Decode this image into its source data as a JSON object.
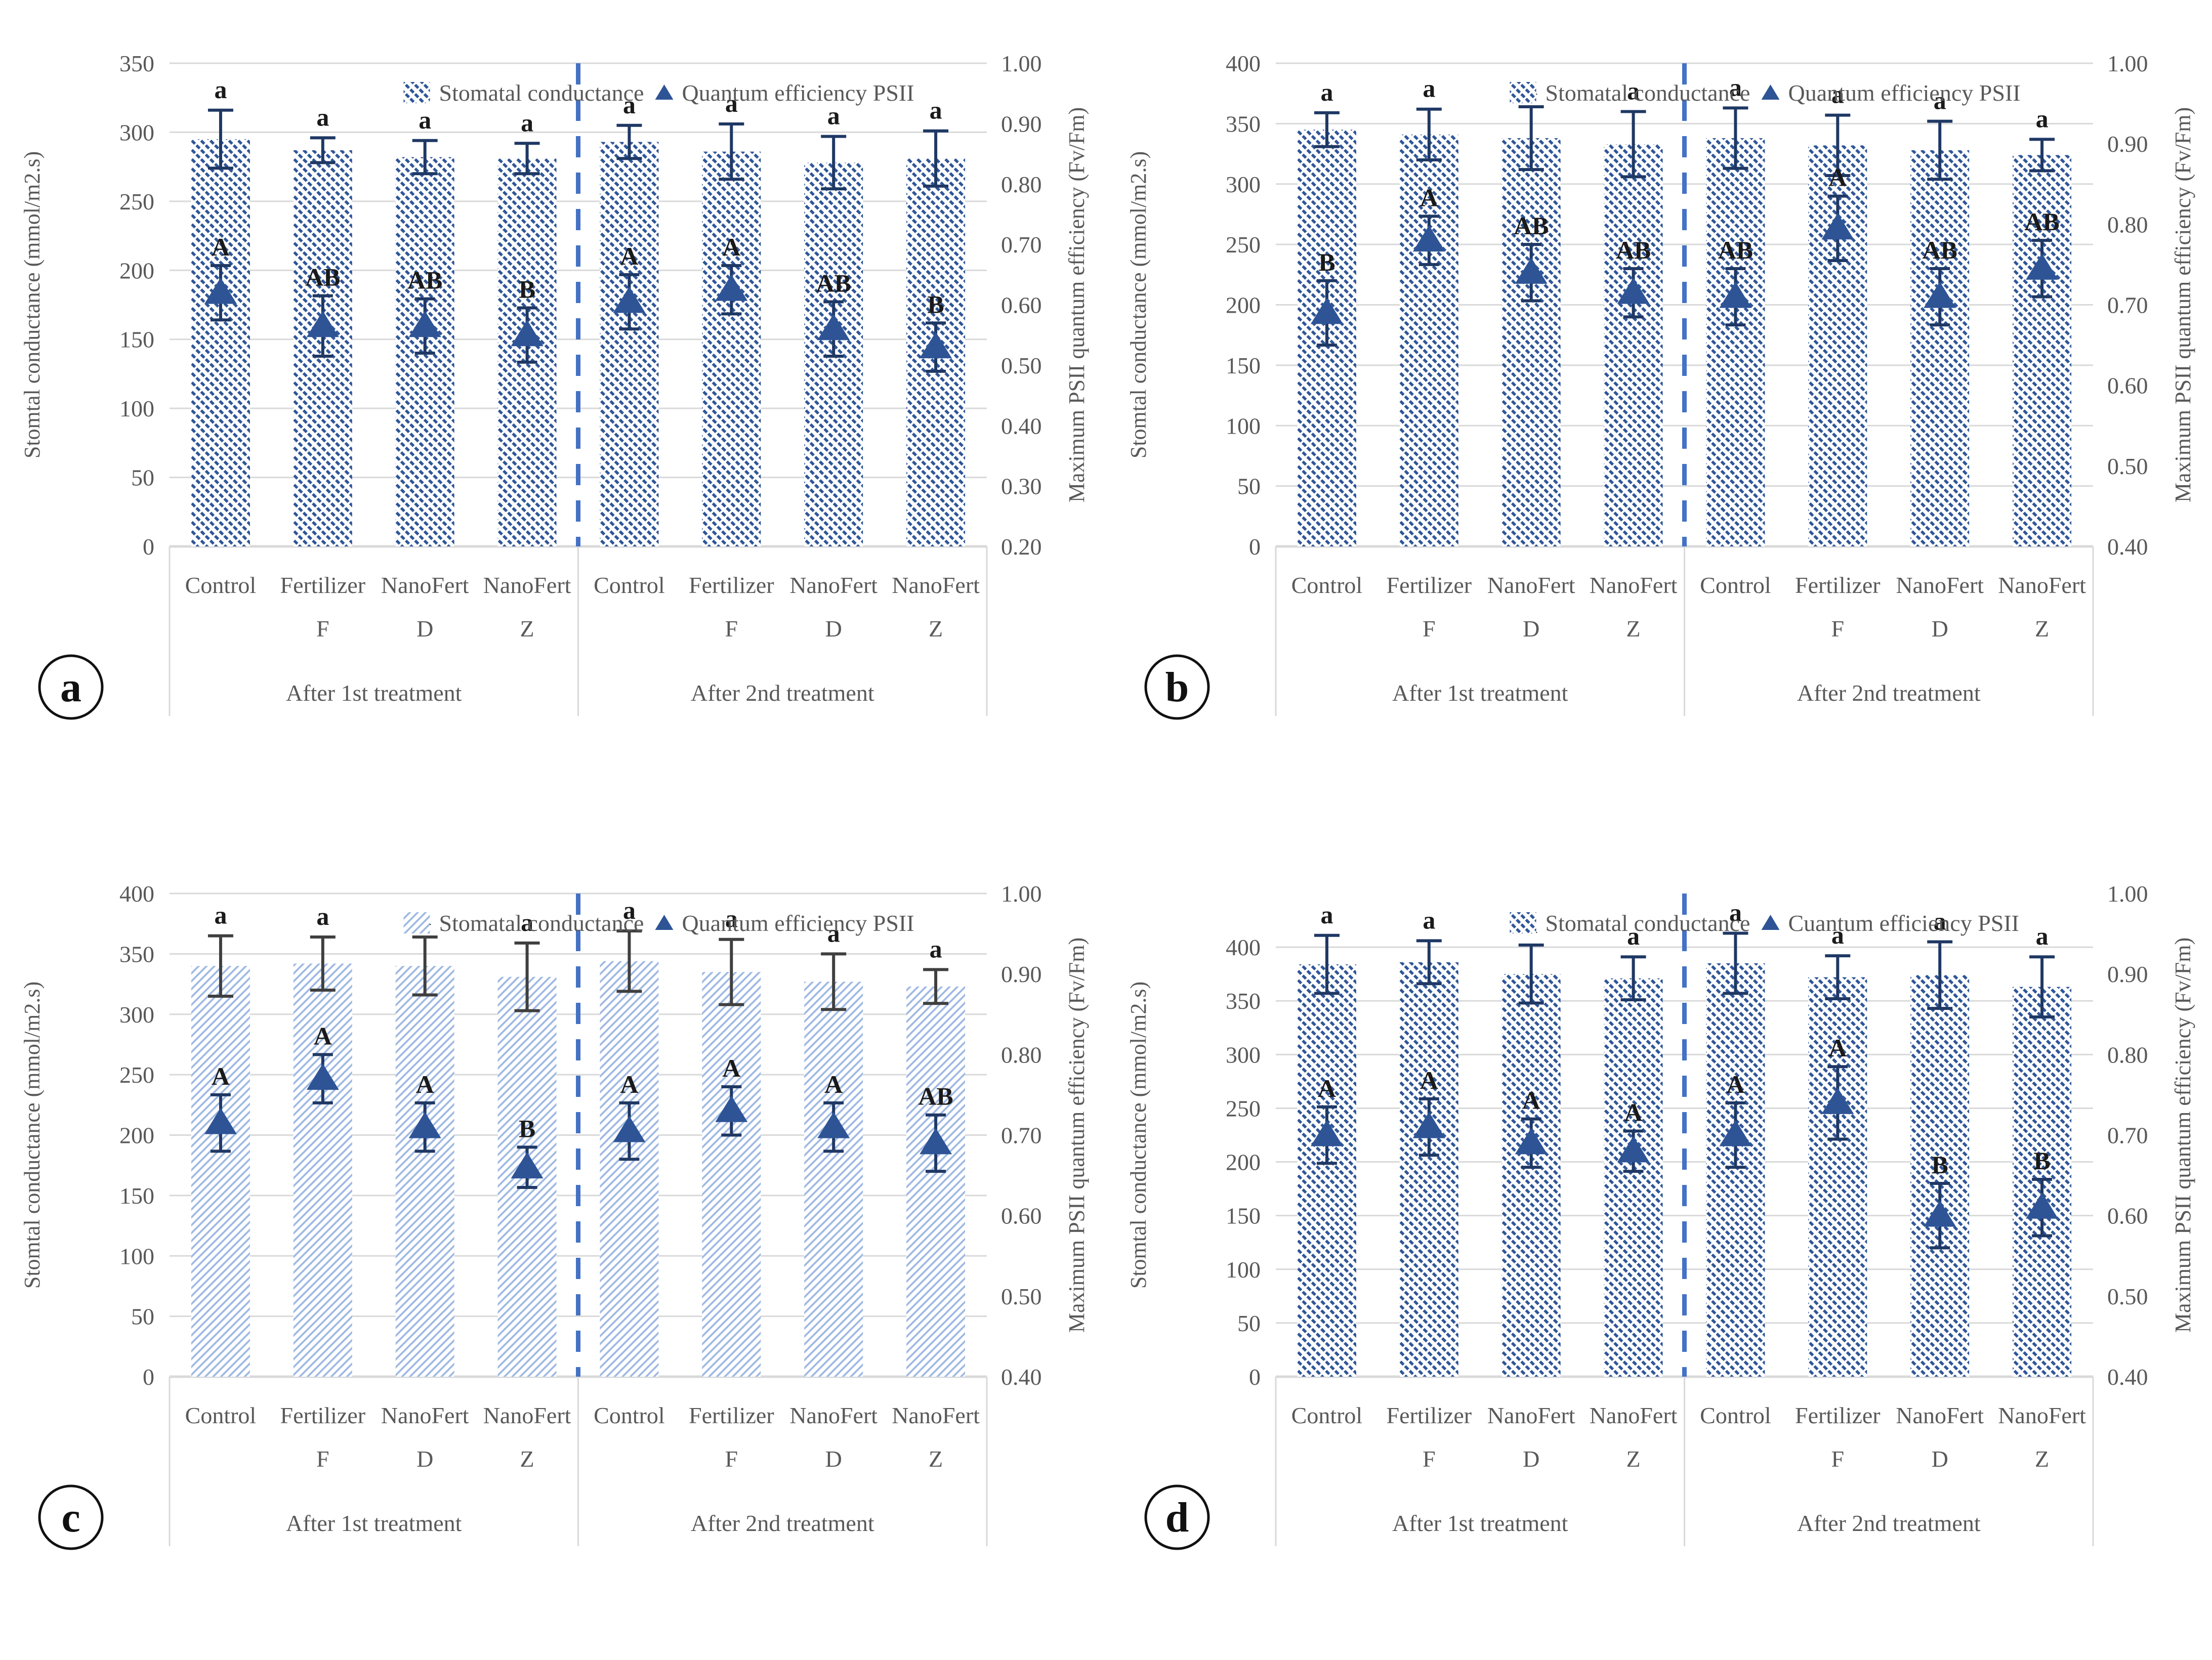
{
  "figure": {
    "panel_badges": [
      "a",
      "b",
      "c",
      "d"
    ]
  },
  "colors": {
    "hatch_dark": "#2e5597",
    "hatch_light": "#9db7e2",
    "triangle_fill": "#2e5496",
    "triangle_err": "#1f3864",
    "bar_err_navy": "#1f3864",
    "bar_err_gray": "#3f3f3f",
    "divider_blue": "#4472c4",
    "gridline": "#d9d9d9",
    "axis_text": "#595959",
    "sig_letter": "#1a1a1a",
    "badge_border": "#111111"
  },
  "panels": [
    {
      "badge": "a",
      "legend": [
        {
          "icon": "hatch-swatch",
          "label": "Stomatal conductance"
        },
        {
          "icon": "triangle-marker",
          "label": "Quantum efficiency PSII"
        }
      ]
    },
    {
      "badge": "b",
      "legend": [
        {
          "icon": "hatch-swatch",
          "label": "Stomatal conductance"
        },
        {
          "icon": "triangle-marker",
          "label": "Quantum efficiency PSII"
        }
      ]
    },
    {
      "badge": "c",
      "legend": [
        {
          "icon": "hatch-swatch",
          "label": "Stomatal conductance"
        },
        {
          "icon": "triangle-marker",
          "label": "Quantum efficiency PSII"
        }
      ]
    },
    {
      "badge": "d",
      "legend": [
        {
          "icon": "hatch-swatch",
          "label": "Stomatal conductance"
        },
        {
          "icon": "triangle-marker",
          "label": "Cuantum efficiency PSII"
        }
      ]
    }
  ],
  "chart_data": [
    {
      "type": "bar",
      "panel": "a",
      "subtype": "bars-with-scatter-triangles",
      "categories": [
        [
          "Control",
          ""
        ],
        [
          "Fertilizer",
          "F"
        ],
        [
          "NanoFert",
          "D"
        ],
        [
          "NanoFert",
          "Z"
        ],
        [
          "Control",
          ""
        ],
        [
          "Fertilizer",
          "F"
        ],
        [
          "NanoFert",
          "D"
        ],
        [
          "NanoFert",
          "Z"
        ]
      ],
      "group_labels": [
        "After 1st treatment",
        "After 2nd treatment"
      ],
      "left_axis": {
        "label": "Stomtal conductance (mmol/m2.s)",
        "range": [
          0,
          350
        ],
        "ticks": [
          350,
          300,
          250,
          200,
          150,
          100,
          50,
          0
        ]
      },
      "right_axis": {
        "label": "Maximum PSII quantum efficiency (Fv/Fm)",
        "range": [
          0.2,
          1.0
        ],
        "ticks": [
          "1.00",
          "0.90",
          "0.80",
          "0.70",
          "0.60",
          "0.50",
          "0.40",
          "0.30",
          "0.20"
        ]
      },
      "series": [
        {
          "name": "Stomatal conductance",
          "type": "bar",
          "axis": "left",
          "values": [
            295,
            287,
            282,
            281,
            293,
            286,
            278,
            281
          ],
          "errors": [
            21,
            9,
            12,
            11,
            12,
            20,
            19,
            20
          ],
          "letters": [
            "a",
            "a",
            "a",
            "a",
            "a",
            "a",
            "a",
            "a"
          ]
        },
        {
          "name": "Quantum efficiency PSII",
          "type": "scatter",
          "marker": "triangle",
          "axis": "right",
          "values": [
            0.62,
            0.565,
            0.565,
            0.55,
            0.605,
            0.625,
            0.56,
            0.53
          ],
          "errors": [
            0.045,
            0.05,
            0.045,
            0.045,
            0.045,
            0.04,
            0.045,
            0.04
          ],
          "letters": [
            "A",
            "AB",
            "AB",
            "B",
            "A",
            "A",
            "AB",
            "B"
          ]
        }
      ],
      "style": {
        "hatch": "dark",
        "bar_err_color": "#1f3864"
      }
    },
    {
      "type": "bar",
      "panel": "b",
      "subtype": "bars-with-scatter-triangles",
      "categories": [
        [
          "Control",
          ""
        ],
        [
          "Fertilizer",
          "F"
        ],
        [
          "NanoFert",
          "D"
        ],
        [
          "NanoFert",
          "Z"
        ],
        [
          "Control",
          ""
        ],
        [
          "Fertilizer",
          "F"
        ],
        [
          "NanoFert",
          "D"
        ],
        [
          "NanoFert",
          "Z"
        ]
      ],
      "group_labels": [
        "After 1st treatment",
        "After 2nd treatment"
      ],
      "left_axis": {
        "label": "Stomtal conductance (mmol/m2.s)",
        "range": [
          0,
          400
        ],
        "ticks": [
          400,
          350,
          300,
          250,
          200,
          150,
          100,
          50,
          0
        ]
      },
      "right_axis": {
        "label": "Maximum PSII quantum efficiency (Fv/Fm)",
        "range": [
          0.4,
          1.0
        ],
        "ticks": [
          "1.00",
          "0.90",
          "0.80",
          "0.70",
          "0.60",
          "0.50",
          "0.40"
        ]
      },
      "series": [
        {
          "name": "Stomatal conductance",
          "type": "bar",
          "axis": "left",
          "values": [
            345,
            341,
            338,
            333,
            338,
            332,
            328,
            324
          ],
          "errors": [
            14,
            21,
            26,
            27,
            25,
            25,
            24,
            13
          ],
          "letters": [
            "a",
            "a",
            "a",
            "a",
            "a",
            "a",
            "a",
            "a"
          ]
        },
        {
          "name": "Quantum efficiency PSII",
          "type": "scatter",
          "marker": "triangle",
          "axis": "right",
          "values": [
            0.69,
            0.78,
            0.74,
            0.715,
            0.71,
            0.795,
            0.71,
            0.745
          ],
          "errors": [
            0.04,
            0.03,
            0.035,
            0.03,
            0.035,
            0.04,
            0.035,
            0.035
          ],
          "letters": [
            "B",
            "A",
            "AB",
            "AB",
            "AB",
            "A",
            "AB",
            "AB"
          ]
        }
      ],
      "style": {
        "hatch": "dark",
        "bar_err_color": "#1f3864"
      }
    },
    {
      "type": "bar",
      "panel": "c",
      "subtype": "bars-with-scatter-triangles",
      "categories": [
        [
          "Control",
          ""
        ],
        [
          "Fertilizer",
          "F"
        ],
        [
          "NanoFert",
          "D"
        ],
        [
          "NanoFert",
          "Z"
        ],
        [
          "Control",
          ""
        ],
        [
          "Fertilizer",
          "F"
        ],
        [
          "NanoFert",
          "D"
        ],
        [
          "NanoFert",
          "Z"
        ]
      ],
      "group_labels": [
        "After 1st treatment",
        "After 2nd treatment"
      ],
      "left_axis": {
        "label": "Stomtal conductance (mmol/m2.s)",
        "range": [
          0,
          400
        ],
        "ticks": [
          400,
          350,
          300,
          250,
          200,
          150,
          100,
          50,
          0
        ]
      },
      "right_axis": {
        "label": "Maximum PSII quantum efficiency (Fv/Fm)",
        "range": [
          0.4,
          1.0
        ],
        "ticks": [
          "1.00",
          "0.90",
          "0.80",
          "0.70",
          "0.60",
          "0.50",
          "0.40"
        ]
      },
      "series": [
        {
          "name": "Stomatal conductance",
          "type": "bar",
          "axis": "left",
          "values": [
            340,
            342,
            340,
            331,
            344,
            335,
            327,
            323
          ],
          "errors": [
            25,
            22,
            24,
            28,
            25,
            27,
            23,
            14
          ],
          "letters": [
            "a",
            "a",
            "a",
            "a",
            "a",
            "a",
            "a",
            "a"
          ]
        },
        {
          "name": "Quantum efficiency PSII",
          "type": "scatter",
          "marker": "triangle",
          "axis": "right",
          "values": [
            0.715,
            0.77,
            0.71,
            0.66,
            0.705,
            0.73,
            0.71,
            0.69
          ],
          "errors": [
            0.035,
            0.03,
            0.03,
            0.025,
            0.035,
            0.03,
            0.03,
            0.035
          ],
          "letters": [
            "A",
            "A",
            "A",
            "B",
            "A",
            "A",
            "A",
            "AB"
          ]
        }
      ],
      "style": {
        "hatch": "light",
        "bar_err_color": "#3f3f3f"
      }
    },
    {
      "type": "bar",
      "panel": "d",
      "subtype": "bars-with-scatter-triangles",
      "categories": [
        [
          "Control",
          ""
        ],
        [
          "Fertilizer",
          "F"
        ],
        [
          "NanoFert",
          "D"
        ],
        [
          "NanoFert",
          "Z"
        ],
        [
          "Control",
          ""
        ],
        [
          "Fertilizer",
          "F"
        ],
        [
          "NanoFert",
          "D"
        ],
        [
          "NanoFert",
          "Z"
        ]
      ],
      "group_labels": [
        "After 1st treatment",
        "After 2nd treatment"
      ],
      "left_axis": {
        "label": "Stomtal conductance (mmol/m2.s)",
        "range": [
          0,
          450
        ],
        "ticks": [
          400,
          350,
          300,
          250,
          200,
          150,
          100,
          50,
          0
        ]
      },
      "right_axis": {
        "label": "Maximum PSII quantum efficiency (Fv/Fm)",
        "range": [
          0.4,
          1.0
        ],
        "ticks": [
          "1.00",
          "0.90",
          "0.80",
          "0.70",
          "0.60",
          "0.50",
          "0.40"
        ]
      },
      "series": [
        {
          "name": "Stomatal conductance",
          "type": "bar",
          "axis": "left",
          "values": [
            384,
            386,
            375,
            371,
            385,
            372,
            374,
            363
          ],
          "errors": [
            27,
            20,
            27,
            20,
            28,
            20,
            31,
            28
          ],
          "letters": [
            "a",
            "a",
            "a",
            "a",
            "a",
            "a",
            "a",
            "a"
          ]
        },
        {
          "name": "Cuantum efficiency PSII",
          "type": "scatter",
          "marker": "triangle",
          "axis": "right",
          "values": [
            0.7,
            0.71,
            0.69,
            0.68,
            0.7,
            0.74,
            0.6,
            0.61
          ],
          "errors": [
            0.035,
            0.035,
            0.03,
            0.025,
            0.04,
            0.045,
            0.04,
            0.035
          ],
          "letters": [
            "A",
            "A",
            "A",
            "A",
            "A",
            "A",
            "B",
            "B"
          ]
        }
      ],
      "style": {
        "hatch": "dark",
        "bar_err_color": "#1f3864"
      }
    }
  ]
}
